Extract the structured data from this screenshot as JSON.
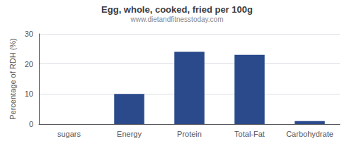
{
  "chart_data": {
    "type": "bar",
    "title": "Egg, whole, cooked, fried per 100g",
    "subtitle": "www.dietandfitnesstoday.com",
    "categories": [
      "sugars",
      "Energy",
      "Protein",
      "Total-Fat",
      "Carbohydrate"
    ],
    "values": [
      0,
      10,
      24,
      23,
      1
    ],
    "color": "#2b4a8c",
    "ylabel": "Percentage of RDH (%)",
    "ylim": [
      0,
      30
    ],
    "yticks": [
      0,
      10,
      20,
      30
    ],
    "grid": true
  }
}
